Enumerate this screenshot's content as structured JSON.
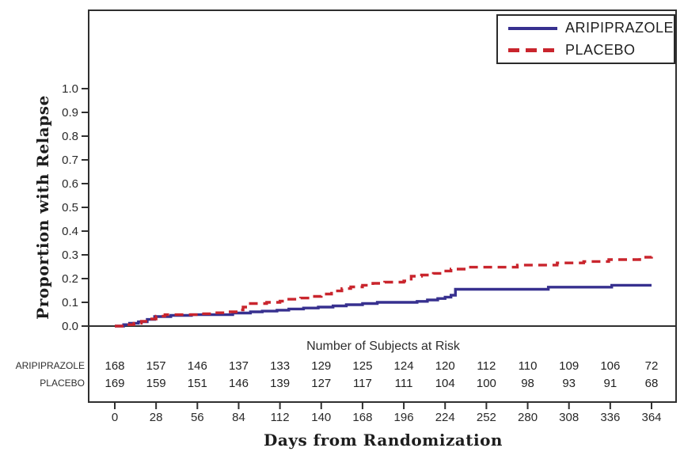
{
  "figure": {
    "legend": {
      "items": [
        {
          "label": "ARIPIPRAZOLE",
          "line_style": "solid",
          "color": "#37308f"
        },
        {
          "label": "PLACEBO",
          "line_style": "dashed",
          "color": "#c9252d"
        }
      ]
    },
    "risk_table": {
      "title": "Number of Subjects at Risk",
      "rows": [
        {
          "label": "ARIPIPRAZOLE",
          "counts": [
            168,
            157,
            146,
            137,
            133,
            129,
            125,
            124,
            120,
            112,
            110,
            109,
            106,
            72
          ]
        },
        {
          "label": "PLACEBO",
          "counts": [
            169,
            159,
            151,
            146,
            139,
            127,
            117,
            111,
            104,
            100,
            98,
            93,
            91,
            68
          ]
        }
      ]
    },
    "colors": {
      "axis": "#2f2f2f",
      "text": "#2a2a2a"
    }
  },
  "chart_data": {
    "type": "line",
    "subtype": "kaplan-meier-step",
    "title": "",
    "xlabel": "Days from Randomization",
    "ylabel": "Proportion with Relapse",
    "xlim": [
      0,
      364
    ],
    "ylim": [
      0,
      1.0
    ],
    "x_ticks": [
      0,
      28,
      56,
      84,
      112,
      140,
      168,
      196,
      224,
      252,
      280,
      308,
      336,
      364
    ],
    "y_ticks": [
      0.0,
      0.1,
      0.2,
      0.3,
      0.4,
      0.5,
      0.6,
      0.7,
      0.8,
      0.9,
      1.0
    ],
    "grid": false,
    "legend_position": "top-right",
    "series": [
      {
        "name": "ARIPIPRAZOLE",
        "color": "#37308f",
        "line_style": "solid",
        "points": [
          [
            0,
            0
          ],
          [
            6,
            0.006
          ],
          [
            10,
            0.012
          ],
          [
            16,
            0.018
          ],
          [
            22,
            0.028
          ],
          [
            27,
            0.04
          ],
          [
            38,
            0.045
          ],
          [
            52,
            0.048
          ],
          [
            80,
            0.055
          ],
          [
            92,
            0.06
          ],
          [
            100,
            0.063
          ],
          [
            110,
            0.067
          ],
          [
            118,
            0.072
          ],
          [
            128,
            0.076
          ],
          [
            138,
            0.08
          ],
          [
            148,
            0.085
          ],
          [
            157,
            0.09
          ],
          [
            168,
            0.095
          ],
          [
            178,
            0.1
          ],
          [
            205,
            0.104
          ],
          [
            212,
            0.11
          ],
          [
            219,
            0.116
          ],
          [
            224,
            0.122
          ],
          [
            228,
            0.13
          ],
          [
            231,
            0.155
          ],
          [
            294,
            0.164
          ],
          [
            337,
            0.172
          ],
          [
            364,
            0.172
          ]
        ]
      },
      {
        "name": "PLACEBO",
        "color": "#c9252d",
        "line_style": "dashed",
        "points": [
          [
            0,
            0
          ],
          [
            8,
            0.006
          ],
          [
            13,
            0.012
          ],
          [
            18,
            0.02
          ],
          [
            24,
            0.03
          ],
          [
            28,
            0.042
          ],
          [
            34,
            0.048
          ],
          [
            57,
            0.052
          ],
          [
            67,
            0.056
          ],
          [
            75,
            0.06
          ],
          [
            84,
            0.068
          ],
          [
            87,
            0.08
          ],
          [
            90,
            0.095
          ],
          [
            103,
            0.1
          ],
          [
            112,
            0.105
          ],
          [
            116,
            0.113
          ],
          [
            126,
            0.118
          ],
          [
            134,
            0.125
          ],
          [
            140,
            0.135
          ],
          [
            147,
            0.148
          ],
          [
            154,
            0.158
          ],
          [
            160,
            0.165
          ],
          [
            168,
            0.172
          ],
          [
            175,
            0.18
          ],
          [
            183,
            0.185
          ],
          [
            196,
            0.19
          ],
          [
            201,
            0.21
          ],
          [
            208,
            0.215
          ],
          [
            216,
            0.222
          ],
          [
            222,
            0.232
          ],
          [
            228,
            0.24
          ],
          [
            238,
            0.248
          ],
          [
            273,
            0.257
          ],
          [
            300,
            0.266
          ],
          [
            318,
            0.272
          ],
          [
            335,
            0.28
          ],
          [
            356,
            0.29
          ],
          [
            364,
            0.292
          ]
        ]
      }
    ]
  }
}
